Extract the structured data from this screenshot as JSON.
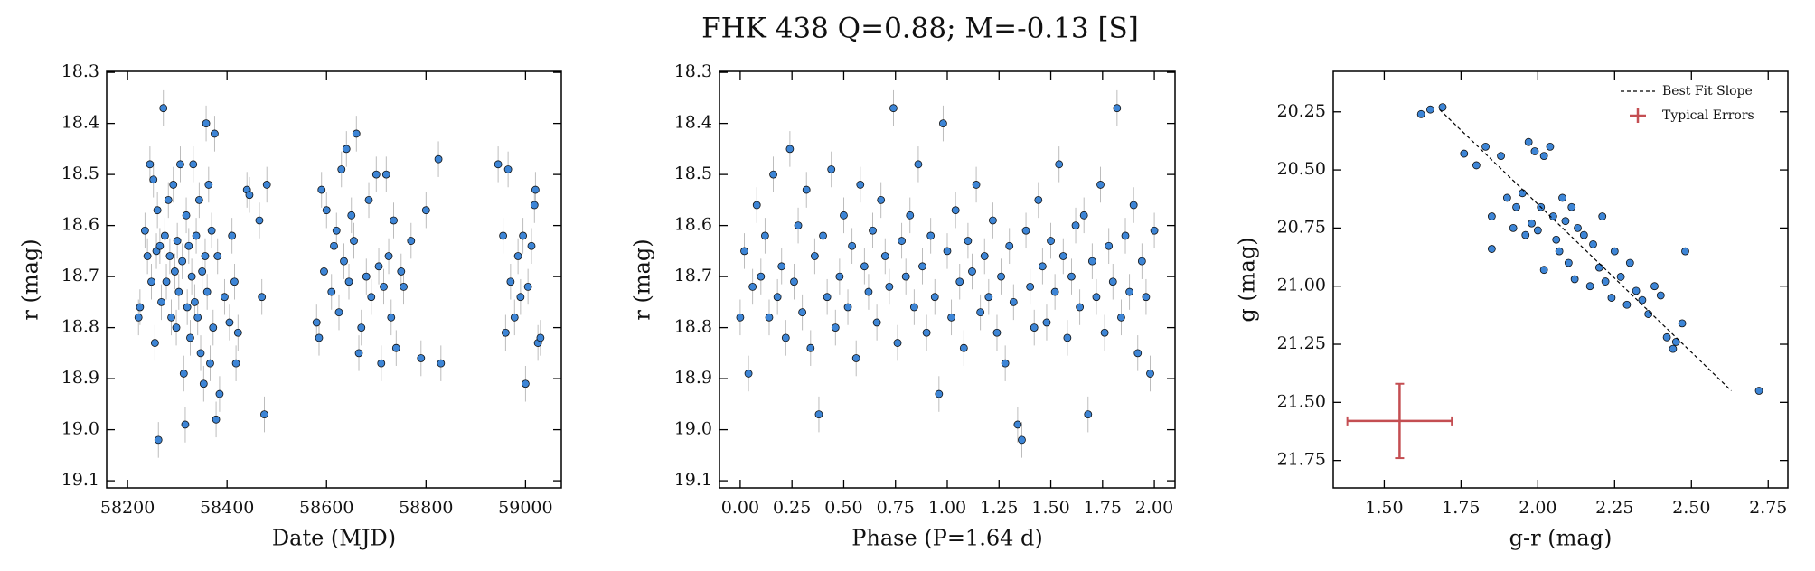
{
  "title": "FHK 438  Q=0.88; M=-0.13 [S]",
  "chart_data": [
    {
      "type": "scatter",
      "xlabel": "Date (MJD)",
      "ylabel": "r (mag)",
      "color": "#3d85d6",
      "yerr": 0.035,
      "xlim": [
        58158,
        59072
      ],
      "ylim": [
        19.114,
        18.298
      ],
      "xticks": [
        58200,
        58400,
        58600,
        58800,
        59000
      ],
      "yticks": [
        18.3,
        18.4,
        18.5,
        18.6,
        18.7,
        18.8,
        18.9,
        {
          "value": 19,
          "label": "19.0"
        },
        19.1
      ],
      "x": [
        58222,
        58225,
        58235,
        58240,
        58245,
        58248,
        58252,
        58255,
        58258,
        58260,
        58262,
        58265,
        58268,
        58272,
        58275,
        58278,
        58282,
        58285,
        58288,
        58292,
        58295,
        58298,
        58300,
        58303,
        58306,
        58310,
        58313,
        58316,
        58318,
        58320,
        58323,
        58326,
        58329,
        58332,
        58335,
        58338,
        58341,
        58344,
        58347,
        58350,
        58353,
        58356,
        58358,
        58360,
        58363,
        58366,
        58369,
        58372,
        58375,
        58378,
        58381,
        58385,
        58395,
        58405,
        58410,
        58415,
        58418,
        58422,
        58440,
        58445,
        58465,
        58470,
        58475,
        58480,
        58580,
        58585,
        58590,
        58595,
        58600,
        58610,
        58615,
        58620,
        58625,
        58630,
        58635,
        58640,
        58645,
        58650,
        58655,
        58660,
        58665,
        58670,
        58680,
        58685,
        58690,
        58700,
        58705,
        58710,
        58715,
        58720,
        58725,
        58730,
        58735,
        58740,
        58750,
        58755,
        58770,
        58790,
        58800,
        58825,
        58830,
        58945,
        58955,
        58960,
        58965,
        58970,
        58978,
        58985,
        58990,
        58995,
        59000,
        59005,
        59012,
        59018,
        59020,
        59025,
        59030
      ],
      "y": [
        18.78,
        18.76,
        18.61,
        18.66,
        18.48,
        18.71,
        18.51,
        18.83,
        18.65,
        18.57,
        19.02,
        18.64,
        18.75,
        18.37,
        18.62,
        18.71,
        18.55,
        18.66,
        18.78,
        18.52,
        18.69,
        18.8,
        18.63,
        18.73,
        18.48,
        18.67,
        18.89,
        18.99,
        18.58,
        18.76,
        18.64,
        18.82,
        18.7,
        18.48,
        18.75,
        18.62,
        18.78,
        18.55,
        18.85,
        18.69,
        18.91,
        18.66,
        18.4,
        18.73,
        18.52,
        18.87,
        18.61,
        18.8,
        18.42,
        18.98,
        18.66,
        18.93,
        18.74,
        18.79,
        18.62,
        18.71,
        18.87,
        18.81,
        18.53,
        18.54,
        18.59,
        18.74,
        18.97,
        18.52,
        18.79,
        18.82,
        18.53,
        18.69,
        18.57,
        18.73,
        18.64,
        18.61,
        18.77,
        18.49,
        18.67,
        18.45,
        18.71,
        18.58,
        18.63,
        18.42,
        18.85,
        18.8,
        18.7,
        18.55,
        18.74,
        18.5,
        18.68,
        18.87,
        18.72,
        18.5,
        18.66,
        18.78,
        18.59,
        18.84,
        18.69,
        18.72,
        18.63,
        18.86,
        18.57,
        18.47,
        18.87,
        18.48,
        18.62,
        18.81,
        18.49,
        18.71,
        18.78,
        18.66,
        18.74,
        18.62,
        18.91,
        18.72,
        18.64,
        18.56,
        18.53,
        18.83,
        18.82
      ]
    },
    {
      "type": "scatter",
      "xlabel": "Phase (P=1.64 d)",
      "ylabel": "r (mag)",
      "color": "#3d85d6",
      "yerr": 0.035,
      "xlim": [
        -0.1,
        2.1
      ],
      "ylim": [
        19.114,
        18.298
      ],
      "xticks": [
        {
          "value": 0,
          "label": "0.00"
        },
        0.25,
        {
          "value": 0.5,
          "label": "0.50"
        },
        0.75,
        {
          "value": 1,
          "label": "1.00"
        },
        1.25,
        {
          "value": 1.5,
          "label": "1.50"
        },
        1.75,
        {
          "value": 2,
          "label": "2.00"
        }
      ],
      "yticks": [
        18.3,
        18.4,
        18.5,
        18.6,
        18.7,
        18.8,
        18.9,
        {
          "value": 19,
          "label": "19.0"
        },
        19.1
      ],
      "x": [
        0,
        0.02,
        0.04,
        0.06,
        0.08,
        0.1,
        0.12,
        0.14,
        0.16,
        0.18,
        0.2,
        0.22,
        0.24,
        0.26,
        0.28,
        0.3,
        0.32,
        0.34,
        0.36,
        0.38,
        0.4,
        0.42,
        0.44,
        0.46,
        0.48,
        0.5,
        0.52,
        0.54,
        0.56,
        0.58,
        0.6,
        0.62,
        0.64,
        0.66,
        0.68,
        0.7,
        0.72,
        0.74,
        0.76,
        0.78,
        0.8,
        0.82,
        0.84,
        0.86,
        0.88,
        0.9,
        0.92,
        0.94,
        0.96,
        0.98,
        1,
        1.02,
        1.04,
        1.06,
        1.08,
        1.1,
        1.12,
        1.14,
        1.16,
        1.18,
        1.2,
        1.22,
        1.24,
        1.26,
        1.28,
        1.3,
        1.32,
        1.34,
        1.36,
        1.38,
        1.4,
        1.42,
        1.44,
        1.46,
        1.48,
        1.5,
        1.52,
        1.54,
        1.56,
        1.58,
        1.6,
        1.62,
        1.64,
        1.66,
        1.68,
        1.7,
        1.72,
        1.74,
        1.76,
        1.78,
        1.8,
        1.82,
        1.84,
        1.86,
        1.88,
        1.9,
        1.92,
        1.94,
        1.96,
        1.98,
        2
      ],
      "y": [
        18.78,
        18.65,
        18.89,
        18.72,
        18.56,
        18.7,
        18.62,
        18.78,
        18.5,
        18.74,
        18.68,
        18.82,
        18.45,
        18.71,
        18.6,
        18.77,
        18.53,
        18.84,
        18.66,
        18.97,
        18.62,
        18.74,
        18.49,
        18.8,
        18.7,
        18.58,
        18.76,
        18.64,
        18.86,
        18.52,
        18.68,
        18.73,
        18.61,
        18.79,
        18.55,
        18.66,
        18.72,
        18.37,
        18.83,
        18.63,
        18.7,
        18.58,
        18.76,
        18.48,
        18.68,
        18.81,
        18.62,
        18.74,
        18.93,
        18.4,
        18.65,
        18.78,
        18.57,
        18.71,
        18.84,
        18.63,
        18.69,
        18.52,
        18.77,
        18.66,
        18.74,
        18.59,
        18.81,
        18.7,
        18.87,
        18.64,
        18.75,
        18.99,
        19.02,
        18.61,
        18.72,
        18.8,
        18.55,
        18.68,
        18.79,
        18.63,
        18.73,
        18.48,
        18.66,
        18.82,
        18.7,
        18.6,
        18.76,
        18.58,
        18.97,
        18.67,
        18.74,
        18.52,
        18.81,
        18.64,
        18.71,
        18.37,
        18.78,
        18.62,
        18.73,
        18.56,
        18.85,
        18.67,
        18.74,
        18.89,
        18.61
      ]
    },
    {
      "type": "scatter",
      "xlabel": "g-r (mag)",
      "ylabel": "g (mag)",
      "color": "#3d85d6",
      "xlim": [
        1.334,
        2.814
      ],
      "ylim": [
        21.868,
        20.076
      ],
      "legend": "upper right",
      "xticks": [
        {
          "value": 1.5,
          "label": "1.50"
        },
        1.75,
        {
          "value": 2,
          "label": "2.00"
        },
        2.25,
        {
          "value": 2.5,
          "label": "2.50"
        },
        2.75
      ],
      "yticks": [
        20.25,
        {
          "value": 20.5,
          "label": "20.50"
        },
        20.75,
        {
          "value": 21,
          "label": "21.00"
        },
        21.25,
        {
          "value": 21.5,
          "label": "21.50"
        },
        21.75
      ],
      "x": [
        1.62,
        1.65,
        1.69,
        1.76,
        1.8,
        1.83,
        1.85,
        1.85,
        1.88,
        1.9,
        1.92,
        1.93,
        1.95,
        1.96,
        1.97,
        1.98,
        1.99,
        2.0,
        2.01,
        2.02,
        2.02,
        2.04,
        2.05,
        2.06,
        2.07,
        2.08,
        2.09,
        2.1,
        2.11,
        2.12,
        2.13,
        2.15,
        2.17,
        2.18,
        2.2,
        2.21,
        2.22,
        2.24,
        2.25,
        2.27,
        2.29,
        2.3,
        2.32,
        2.34,
        2.36,
        2.38,
        2.4,
        2.42,
        2.44,
        2.45,
        2.47,
        2.48,
        2.72
      ],
      "y": [
        20.26,
        20.24,
        20.23,
        20.43,
        20.48,
        20.4,
        20.7,
        20.84,
        20.44,
        20.62,
        20.75,
        20.66,
        20.6,
        20.78,
        20.38,
        20.73,
        20.42,
        20.76,
        20.66,
        20.44,
        20.93,
        20.4,
        20.7,
        20.8,
        20.85,
        20.62,
        20.72,
        20.9,
        20.66,
        20.97,
        20.75,
        20.78,
        21.0,
        20.82,
        20.92,
        20.7,
        20.98,
        21.05,
        20.85,
        20.96,
        21.08,
        20.9,
        21.02,
        21.06,
        21.12,
        21.0,
        21.04,
        21.22,
        21.27,
        21.24,
        21.16,
        20.85,
        21.45
      ],
      "fit_line": {
        "name": "Best Fit Slope",
        "x": [
          1.68,
          2.63
        ],
        "y": [
          20.24,
          21.45
        ],
        "color": "#000000"
      },
      "typical_error": {
        "name": "Typical Errors",
        "x": 1.55,
        "y": 21.58,
        "xerr": 0.17,
        "yerr": 0.16,
        "color": "#c44e52"
      }
    }
  ]
}
